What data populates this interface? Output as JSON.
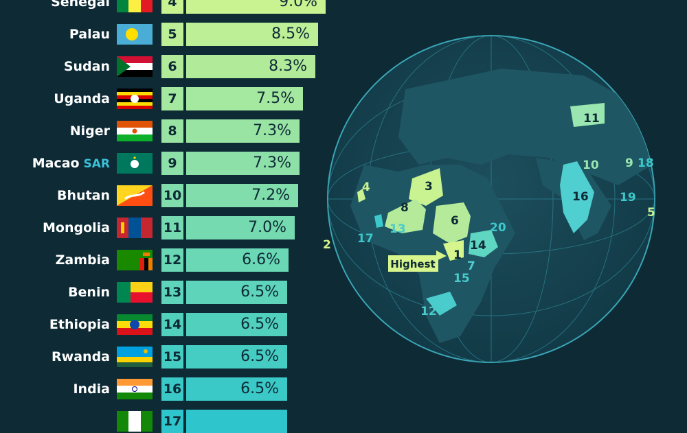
{
  "chart_data": {
    "type": "bar",
    "title": "",
    "rows": [
      {
        "rank": "4",
        "country": "Senegal",
        "value": 9.0,
        "label": "9.0%",
        "flag": "senegal"
      },
      {
        "rank": "5",
        "country": "Palau",
        "value": 8.5,
        "label": "8.5%",
        "flag": "palau"
      },
      {
        "rank": "6",
        "country": "Sudan",
        "value": 8.3,
        "label": "8.3%",
        "flag": "sudan"
      },
      {
        "rank": "7",
        "country": "Uganda",
        "value": 7.5,
        "label": "7.5%",
        "flag": "uganda"
      },
      {
        "rank": "8",
        "country": "Niger",
        "value": 7.3,
        "label": "7.3%",
        "flag": "niger"
      },
      {
        "rank": "9",
        "country": "Macao",
        "suffix": "SAR",
        "value": 7.3,
        "label": "7.3%",
        "flag": "macao"
      },
      {
        "rank": "10",
        "country": "Bhutan",
        "value": 7.2,
        "label": "7.2%",
        "flag": "bhutan"
      },
      {
        "rank": "11",
        "country": "Mongolia",
        "value": 7.0,
        "label": "7.0%",
        "flag": "mongolia"
      },
      {
        "rank": "12",
        "country": "Zambia",
        "value": 6.6,
        "label": "6.6%",
        "flag": "zambia"
      },
      {
        "rank": "13",
        "country": "Benin",
        "value": 6.5,
        "label": "6.5%",
        "flag": "benin"
      },
      {
        "rank": "14",
        "country": "Ethiopia",
        "value": 6.5,
        "label": "6.5%",
        "flag": "ethiopia"
      },
      {
        "rank": "15",
        "country": "Rwanda",
        "value": 6.5,
        "label": "6.5%",
        "flag": "rwanda"
      },
      {
        "rank": "16",
        "country": "India",
        "value": 6.5,
        "label": "6.5%",
        "flag": "india"
      },
      {
        "rank": "17",
        "country": "",
        "value": 6.5,
        "label": "",
        "flag": "cut"
      }
    ],
    "colors": {
      "background": "#0d2a35",
      "bar_high": "#c9f291",
      "bar_low": "#2ec6cc",
      "text_dark": "#0d2a35",
      "text_light": "#ffffff",
      "sar": "#3cc1d9"
    }
  },
  "map": {
    "highest_label": "Highest",
    "labels": [
      "1",
      "2",
      "3",
      "4",
      "5",
      "6",
      "7",
      "8",
      "9",
      "10",
      "11",
      "12",
      "13",
      "14",
      "15",
      "16",
      "17",
      "18",
      "19",
      "20"
    ]
  }
}
